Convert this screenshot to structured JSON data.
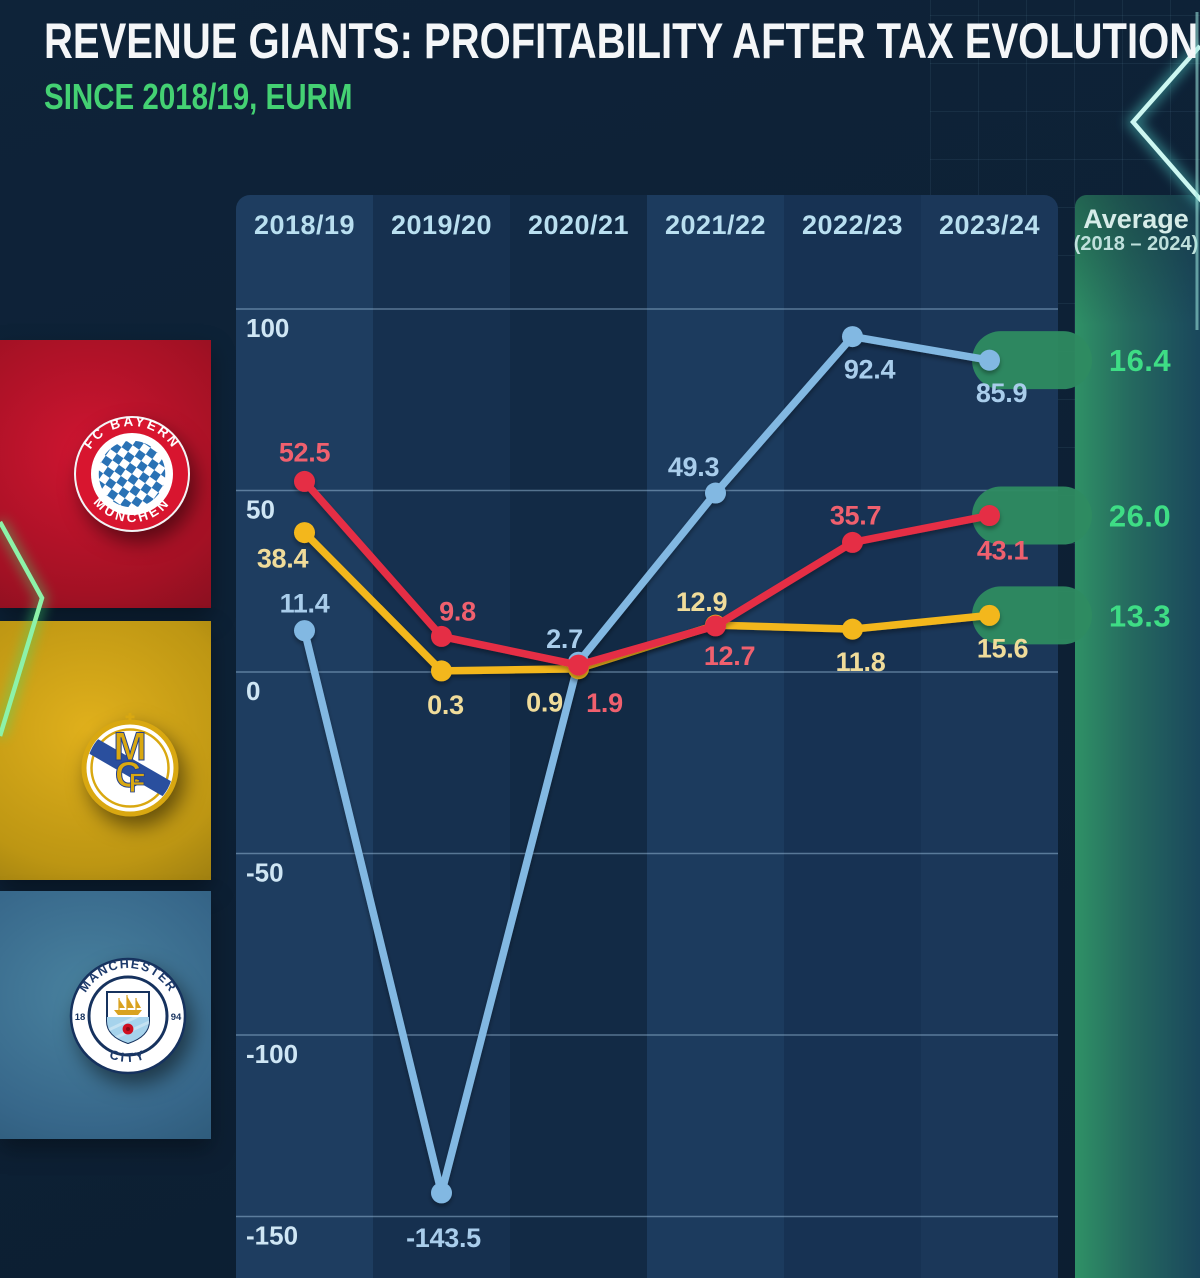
{
  "header": {
    "title": "REVENUE GIANTS: PROFITABILITY AFTER TAX EVOLUTION",
    "subtitle": "SINCE 2018/19, EURM"
  },
  "sidebar": {
    "clubs": [
      {
        "id": "bayern",
        "name": "FC Bayern München",
        "band_color": "#a91022",
        "ring_text_top": "FC BAYERN",
        "ring_text_bottom": "MÜNCHEN"
      },
      {
        "id": "real-madrid",
        "name": "Real Madrid CF",
        "band_color": "#c79b14",
        "monogram_letters": [
          "M",
          "C",
          "F"
        ]
      },
      {
        "id": "man-city",
        "name": "Manchester City",
        "band_color": "#3a6e92",
        "ring_text_top": "MANCHESTER",
        "ring_text_bottom": "CITY",
        "year_left": "18",
        "year_right": "94"
      }
    ]
  },
  "chart_data": {
    "type": "line",
    "title": "REVENUE GIANTS: PROFITABILITY AFTER TAX EVOLUTION",
    "subtitle": "SINCE 2018/19, EURM",
    "categories": [
      "2018/19",
      "2019/20",
      "2020/21",
      "2021/22",
      "2022/23",
      "2023/24"
    ],
    "series": [
      {
        "name": "Manchester City",
        "color": "#82b8e2",
        "label_color": "#a9cdeb",
        "values": [
          11.4,
          -143.5,
          2.7,
          49.3,
          92.4,
          85.9
        ],
        "average": 16.4
      },
      {
        "name": "Real Madrid",
        "color": "#f3b71b",
        "label_color": "#f0dc9a",
        "values": [
          38.4,
          0.3,
          0.9,
          12.9,
          11.8,
          15.6
        ],
        "average": 13.3
      },
      {
        "name": "FC Bayern München",
        "color": "#e52f44",
        "label_color": "#f0606e",
        "values": [
          52.5,
          9.8,
          1.9,
          12.7,
          35.7,
          43.1
        ],
        "average": 26.0
      }
    ],
    "y_ticks": [
      100,
      50,
      0,
      -50,
      -100,
      -150
    ],
    "ylim": [
      -160,
      115
    ],
    "grid": true,
    "legend_position": "left-sidebar-logos",
    "average_header": {
      "line1": "Average",
      "line2": "(2018 – 2024)"
    },
    "average_color": "#3edd85",
    "highlight_pill_color": "#2e8b61"
  }
}
